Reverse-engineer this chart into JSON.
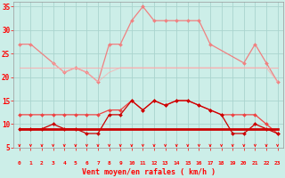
{
  "x": [
    0,
    1,
    2,
    3,
    4,
    5,
    6,
    7,
    8,
    9,
    10,
    11,
    12,
    13,
    14,
    15,
    16,
    17,
    18,
    19,
    20,
    21,
    22,
    23
  ],
  "bg_color": "#cceee8",
  "grid_color": "#aad4ce",
  "xlabel": "Vent moyen/en rafales ( km/h )",
  "ylim": [
    5,
    36
  ],
  "yticks": [
    5,
    10,
    15,
    20,
    25,
    30,
    35
  ],
  "s1_x": [
    0,
    1,
    3,
    4,
    5,
    6,
    7,
    8,
    9,
    10,
    11,
    12,
    13,
    14,
    15,
    16,
    17,
    20,
    21,
    22,
    23
  ],
  "s1_y": [
    27,
    27,
    23,
    21,
    22,
    21,
    19,
    27,
    27,
    32,
    35,
    32,
    32,
    32,
    32,
    32,
    27,
    23,
    27,
    23,
    19
  ],
  "s2_x": [
    0,
    1,
    2,
    3,
    4,
    5,
    6,
    7,
    8,
    9,
    10,
    11,
    12,
    13,
    14,
    15,
    16,
    17,
    18,
    19,
    20,
    21,
    22,
    23
  ],
  "s2_y": [
    22,
    22,
    22,
    22,
    22,
    22,
    22,
    22,
    22,
    22,
    22,
    22,
    22,
    22,
    22,
    22,
    22,
    22,
    22,
    22,
    22,
    22,
    22,
    22
  ],
  "s3_x": [
    3,
    4,
    5,
    6,
    7,
    8,
    9,
    10,
    11,
    12,
    13,
    14,
    15,
    16,
    17,
    18,
    19,
    20,
    21,
    22,
    23
  ],
  "s3_y": [
    23,
    21,
    22,
    21,
    19,
    21,
    22,
    22,
    22,
    22,
    22,
    22,
    22,
    22,
    22,
    22,
    22,
    22,
    22,
    22,
    19
  ],
  "s4_x": [
    0,
    1,
    2,
    3,
    4,
    5,
    6,
    7,
    8,
    9,
    10,
    11,
    12,
    13,
    14,
    15,
    16,
    17,
    18,
    19,
    20,
    21,
    22,
    23
  ],
  "s4_y": [
    12,
    12,
    12,
    12,
    12,
    12,
    12,
    12,
    13,
    13,
    15,
    13,
    15,
    14,
    15,
    15,
    14,
    13,
    12,
    12,
    12,
    12,
    10,
    8
  ],
  "s5_x": [
    0,
    1,
    2,
    3,
    4,
    5,
    6,
    7,
    8,
    9,
    10,
    11,
    12,
    13,
    14,
    15,
    16,
    17,
    18,
    19,
    20,
    21,
    22,
    23
  ],
  "s5_y": [
    9,
    9,
    9,
    10,
    9,
    9,
    8,
    8,
    12,
    12,
    15,
    13,
    15,
    14,
    15,
    15,
    14,
    13,
    12,
    8,
    8,
    10,
    9,
    8
  ],
  "s6_x": [
    0,
    1,
    2,
    3,
    4,
    5,
    6,
    7,
    8,
    9,
    10,
    11,
    12,
    13,
    14,
    15,
    16,
    17,
    18,
    19,
    20,
    21,
    22,
    23
  ],
  "s6_y": [
    9,
    9,
    9,
    9,
    9,
    9,
    9,
    9,
    9,
    9,
    9,
    9,
    9,
    9,
    9,
    9,
    9,
    9,
    9,
    9,
    9,
    9,
    9,
    9
  ],
  "color_light_pink": "#f08080",
  "color_pale_pink": "#f8b0b0",
  "color_dark_red": "#cc0000",
  "color_medium_red": "#ee4444"
}
